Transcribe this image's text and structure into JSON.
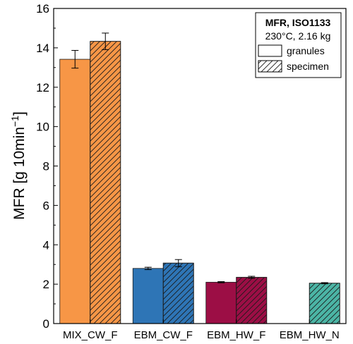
{
  "chart_data": {
    "type": "bar",
    "ylabel_main": "MFR [g 10min",
    "ylabel_sup": "−1",
    "ylabel_end": "]",
    "xlabel": "",
    "ylim": [
      0,
      16
    ],
    "yticks": [
      "0",
      "2",
      "4",
      "6",
      "8",
      "10",
      "12",
      "14",
      "16"
    ],
    "categories": [
      "MIX_CW_F",
      "EBM_CW_F",
      "EBM_HW_F",
      "EBM_HW_N"
    ],
    "colors": [
      "#f79646",
      "#2e75b6",
      "#9c0e45",
      "#4bb5a5"
    ],
    "series": [
      {
        "name": "granules",
        "hatch": false,
        "values": [
          13.42,
          2.8,
          2.1,
          null
        ],
        "errors": [
          0.45,
          0.06,
          0.03,
          null
        ]
      },
      {
        "name": "specimen",
        "hatch": true,
        "values": [
          14.33,
          3.07,
          2.35,
          2.05
        ],
        "errors": [
          0.42,
          0.18,
          0.05,
          0.03
        ]
      }
    ],
    "legend": {
      "title": "MFR, ISO1133",
      "subtitle": "230°C, 2.16 kg",
      "placement": "top-right"
    },
    "grid": false
  }
}
